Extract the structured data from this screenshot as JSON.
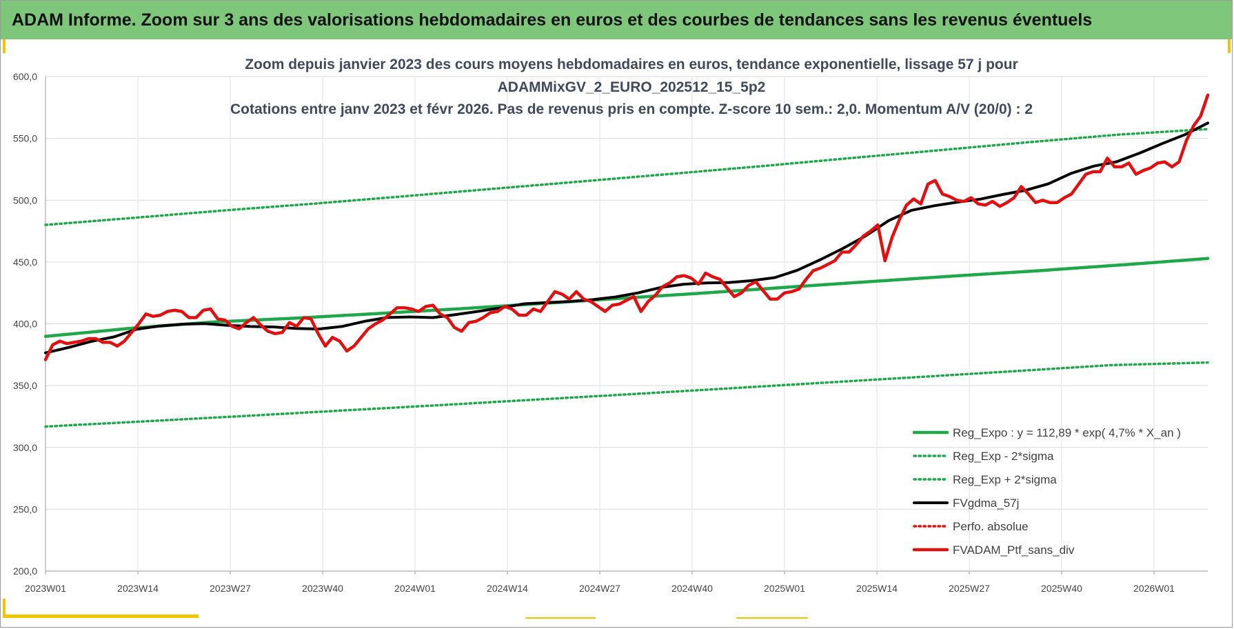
{
  "header": {
    "title": "ADAM Informe. Zoom sur 3 ans des valorisations hebdomadaires en euros et des courbes de tendances sans les revenus éventuels",
    "background": "#7dc67a"
  },
  "chart_data": {
    "type": "line",
    "title_lines": [
      "Zoom depuis janvier 2023 des cours moyens hebdomadaires  en euros, tendance exponentielle, lissage 57 j pour",
      "ADAMMixGV_2_EURO_202512_15_5p2",
      "Cotations  entre janv 2023 et févr 2026. Pas de revenus pris en compte. Z-score 10 sem.: 2,0. Momentum A/V (20/0) : 2"
    ],
    "ylim": [
      200,
      600
    ],
    "y_ticks": [
      "200,0",
      "250,0",
      "300,0",
      "350,0",
      "400,0",
      "450,0",
      "500,0",
      "550,0",
      "600,0"
    ],
    "x_ticks": [
      "2023W01",
      "2023W14",
      "2023W27",
      "2023W40",
      "2024W01",
      "2024W14",
      "2024W27",
      "2024W40",
      "2025W01",
      "2025W14",
      "2025W27",
      "2025W40",
      "2026W01"
    ],
    "grid": true,
    "legend_position": "bottom-right",
    "series": [
      {
        "name": "Reg_Expo : y = 112,89 * exp( 4,7% *  X_an )",
        "style": "solid-thick",
        "color": "#1ea84a",
        "values": [
          389.8,
          396.2,
          401.4,
          404.5,
          408.3,
          412.2,
          416.5,
          420.9,
          425.2,
          429.9,
          434.4,
          438.9,
          443.1,
          447.8,
          452.9
        ]
      },
      {
        "name": "Reg_Exp - 2*sigma",
        "style": "dotted",
        "color": "#1ea84a",
        "values": [
          316.9,
          321.0,
          325.2,
          329.6,
          333.9,
          338.4,
          342.9,
          347.5,
          352.2,
          356.9,
          361.7,
          366.6,
          368.7
        ]
      },
      {
        "name": "Reg_Exp + 2*sigma",
        "style": "dotted",
        "color": "#1ea84a",
        "values": [
          480.0,
          485.8,
          491.7,
          497.2,
          503.1,
          509.2,
          515.2,
          521.3,
          527.5,
          534.0,
          540.4,
          546.9,
          553.0,
          557.5
        ]
      },
      {
        "name": "FVgdma_57j",
        "style": "solid",
        "color": "#000000",
        "values": [
          376.5,
          380.8,
          385.7,
          389.4,
          395.6,
          398.2,
          399.7,
          400.1,
          398.7,
          397.8,
          397.5,
          396.2,
          395.8,
          397.8,
          402.0,
          405.1,
          405.6,
          405.0,
          407.5,
          410.1,
          413.0,
          416.2,
          417.2,
          418.1,
          419.5,
          421.7,
          425.0,
          429.4,
          432.0,
          433.1,
          433.4,
          434.9,
          437.4,
          443.4,
          451.9,
          461.1,
          471.3,
          483.5,
          491.8,
          495.5,
          498.4,
          500.8,
          504.6,
          508.0,
          513.2,
          521.7,
          527.6,
          531.1,
          538.0,
          545.8,
          553.0,
          562.4
        ]
      },
      {
        "name": "Perfo. absolue",
        "style": "dotted",
        "color": "#e01010",
        "values": []
      },
      {
        "name": "FVADAM_Ptf_sans_div",
        "style": "solid-thick",
        "color": "#e01010",
        "values": [
          371,
          383,
          386,
          384,
          385,
          386,
          388,
          388,
          385,
          385,
          382,
          386,
          393,
          400,
          408,
          406,
          407,
          410,
          411,
          410,
          405,
          405,
          411,
          412,
          404,
          403,
          398,
          396,
          401,
          405,
          399,
          394,
          392,
          393,
          401,
          398,
          405,
          404,
          392,
          382,
          389,
          386,
          378,
          382,
          389,
          396,
          400,
          403,
          408,
          413,
          413,
          412,
          410,
          414,
          415,
          408,
          405,
          397,
          394,
          401,
          402,
          405,
          409,
          410,
          414,
          412,
          407,
          407,
          412,
          410,
          418,
          426,
          424,
          420,
          426,
          420,
          418,
          414,
          410,
          415,
          416,
          419,
          422,
          410,
          418,
          423,
          430,
          433,
          438,
          439,
          437,
          432,
          441,
          438,
          436,
          429,
          422,
          425,
          431,
          434,
          427,
          420,
          420,
          425,
          426,
          428,
          436,
          443,
          445,
          448,
          451,
          458,
          458,
          464,
          471,
          475,
          480,
          451,
          470,
          484,
          496,
          501,
          497,
          513,
          516,
          505,
          503,
          500,
          499,
          502,
          497,
          496,
          499,
          495,
          498,
          502,
          511,
          505,
          498,
          500,
          498,
          498,
          502,
          505,
          513,
          521,
          523,
          523,
          534,
          527,
          527,
          530,
          521,
          524,
          526,
          530,
          531,
          527,
          531,
          548,
          560,
          568,
          585
        ]
      }
    ]
  }
}
